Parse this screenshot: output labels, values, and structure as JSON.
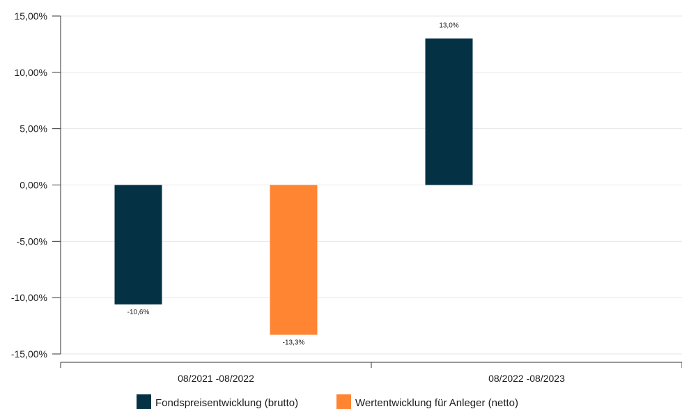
{
  "chart_data": {
    "type": "bar",
    "categories": [
      "08/2021 -08/2022",
      "08/2022 -08/2023"
    ],
    "series": [
      {
        "name": "Fondspreisentwicklung (brutto)",
        "color": "#043244",
        "values": [
          -10.6,
          13.0
        ],
        "labels": [
          "-10,6%",
          "13,0%"
        ]
      },
      {
        "name": "Wertentwicklung für Anleger (netto)",
        "color": "#ff8533",
        "values": [
          -13.3,
          null
        ],
        "labels": [
          "-13,3%",
          ""
        ]
      }
    ],
    "ylim": [
      -15,
      15
    ],
    "yticks": [
      15,
      10,
      5,
      0,
      -5,
      -10,
      -15
    ],
    "ytick_labels": [
      "15,00%",
      "10,00%",
      "5,00%",
      "0,00%",
      "-5,00%",
      "-10,00%",
      "-15,00%"
    ],
    "grid": true,
    "legend_position": "bottom"
  }
}
